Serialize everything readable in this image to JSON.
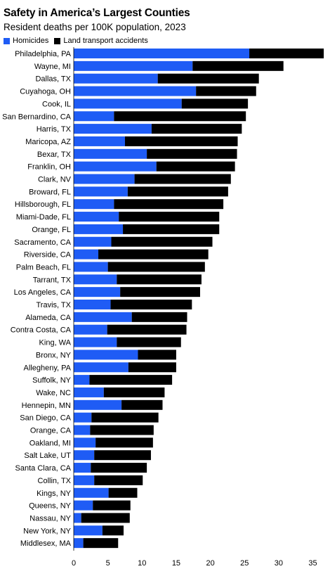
{
  "chart_data": {
    "type": "bar",
    "orientation": "horizontal",
    "stacked": true,
    "title": "Safety in America’s Largest Counties",
    "subtitle": "Resident deaths per 100K population, 2023",
    "legend_position": "top-left",
    "categories": [
      "Philadelphia, PA",
      "Wayne, MI",
      "Dallas, TX",
      "Cuyahoga, OH",
      "Cook, IL",
      "San Bernardino, CA",
      "Harris, TX",
      "Maricopa, AZ",
      "Bexar, TX",
      "Franklin, OH",
      "Clark, NV",
      "Broward, FL",
      "Hillsborough, FL",
      "Miami-Dade, FL",
      "Orange, FL",
      "Sacramento, CA",
      "Riverside, CA",
      "Palm Beach, FL",
      "Tarrant, TX",
      "Los Angeles, CA",
      "Travis, TX",
      "Alameda, CA",
      "Contra Costa, CA",
      "King, WA",
      "Bronx, NY",
      "Allegheny, PA",
      "Suffolk, NY",
      "Wake, NC",
      "Hennepin, MN",
      "San Diego, CA",
      "Orange, CA",
      "Oakland, MI",
      "Salt Lake, UT",
      "Santa Clara, CA",
      "Collin, TX",
      "Kings, NY",
      "Queens, NY",
      "Nassau, NY",
      "New York, NY",
      "Middlesex, MA"
    ],
    "series": [
      {
        "name": "Homicides",
        "color": "#1f5cf5",
        "values": [
          25.7,
          17.4,
          12.3,
          17.9,
          15.8,
          5.9,
          11.4,
          7.5,
          10.7,
          12.1,
          8.9,
          7.9,
          5.9,
          6.6,
          7.2,
          5.5,
          3.6,
          5.0,
          6.3,
          6.8,
          5.4,
          8.5,
          4.9,
          6.3,
          9.4,
          8.0,
          2.3,
          4.4,
          7.0,
          2.6,
          2.4,
          3.2,
          3.0,
          2.5,
          3.0,
          5.1,
          2.8,
          1.1,
          4.2,
          1.4
        ],
        "total": [
          36.6,
          30.7,
          27.1,
          26.7,
          25.5,
          25.2,
          24.6,
          24.0,
          23.9,
          23.6,
          23.0,
          22.6,
          21.9,
          21.3,
          21.3,
          20.3,
          19.7,
          19.2,
          18.7,
          18.5,
          17.3,
          16.6,
          16.5,
          15.7,
          15.0,
          15.0,
          14.4,
          13.3,
          13.0,
          12.4,
          11.7,
          11.6,
          11.3,
          10.7,
          10.1,
          9.3,
          8.3,
          8.2,
          7.3,
          6.5
        ]
      },
      {
        "name": "Land transport accidents",
        "color": "#000000",
        "values": [
          10.9,
          13.3,
          14.8,
          8.8,
          9.7,
          19.3,
          13.2,
          16.5,
          13.2,
          11.5,
          14.1,
          14.7,
          16.0,
          14.7,
          14.1,
          14.8,
          16.1,
          14.2,
          12.4,
          11.7,
          11.9,
          8.1,
          11.6,
          9.4,
          5.6,
          7.0,
          12.1,
          8.9,
          6.0,
          9.8,
          9.3,
          8.4,
          8.3,
          8.2,
          7.1,
          4.2,
          5.5,
          7.1,
          3.1,
          5.1
        ]
      }
    ],
    "xlim": [
      0,
      37
    ],
    "xticks": [
      "0",
      "5",
      "10",
      "15",
      "20",
      "25",
      "30",
      "35"
    ],
    "grid": false
  }
}
